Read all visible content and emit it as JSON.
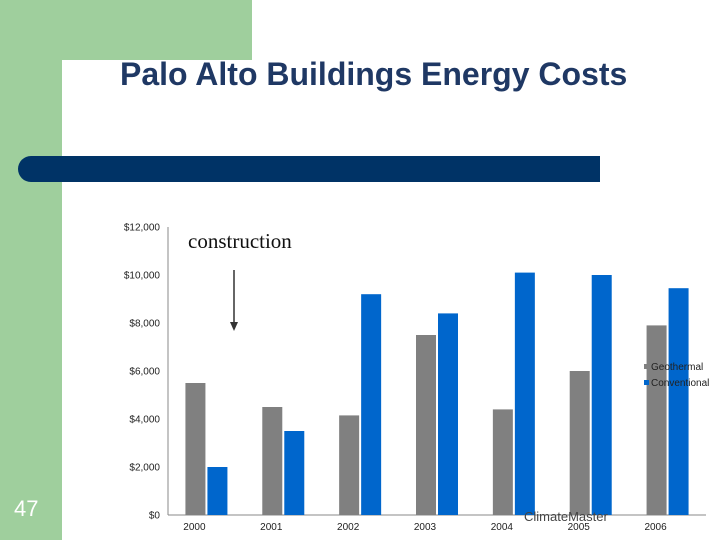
{
  "slide": {
    "title": "Palo Alto Buildings Energy Costs",
    "number": "47",
    "footer": "ClimateMaster"
  },
  "colors": {
    "accent_green": "#9fcf9d",
    "title_bar": "#003366",
    "geothermal": "#808080",
    "conventional": "#0066cc"
  },
  "chart_data": {
    "type": "bar",
    "categories": [
      "2000",
      "2001",
      "2002",
      "2003",
      "2004",
      "2005",
      "2006"
    ],
    "series": [
      {
        "name": "Geothermal",
        "values": [
          5500,
          4500,
          4150,
          7500,
          4400,
          6000,
          7900
        ]
      },
      {
        "name": "Conventional",
        "values": [
          2000,
          3500,
          9200,
          8400,
          10100,
          10000,
          9450
        ]
      }
    ],
    "ylim": [
      0,
      12000
    ],
    "yticks": [
      {
        "value": 0,
        "label": "$0"
      },
      {
        "value": 2000,
        "label": "$2,000"
      },
      {
        "value": 4000,
        "label": "$4,000"
      },
      {
        "value": 6000,
        "label": "$6,000"
      },
      {
        "value": 8000,
        "label": "$8,000"
      },
      {
        "value": 10000,
        "label": "$10,000"
      },
      {
        "value": 12000,
        "label": "$12,000"
      }
    ],
    "annotation": {
      "text": "construction"
    },
    "legend_position": "right",
    "title": "",
    "xlabel": "",
    "ylabel": ""
  }
}
